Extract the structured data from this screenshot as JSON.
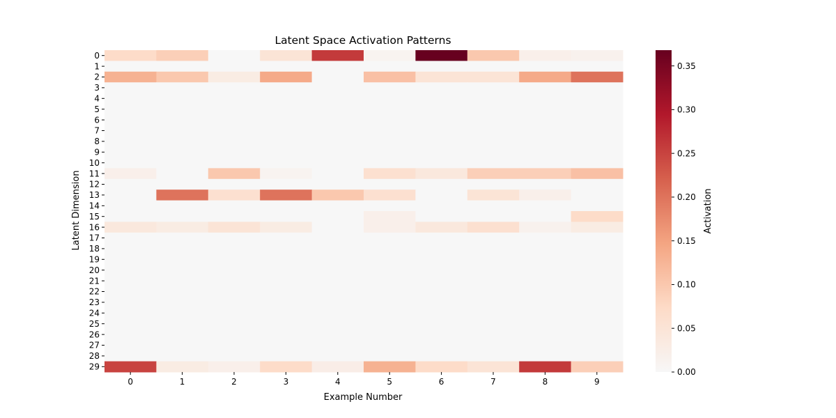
{
  "chart_data": {
    "type": "heatmap",
    "title": "Latent Space Activation Patterns",
    "xlabel": "Example Number",
    "ylabel": "Latent Dimension",
    "colorbar_label": "Activation",
    "colormap": "RdBu_r (white to dark red)",
    "x_categories": [
      "0",
      "1",
      "2",
      "3",
      "4",
      "5",
      "6",
      "7",
      "8",
      "9"
    ],
    "y_categories": [
      "0",
      "1",
      "2",
      "3",
      "4",
      "5",
      "6",
      "7",
      "8",
      "9",
      "10",
      "11",
      "12",
      "13",
      "14",
      "15",
      "16",
      "17",
      "18",
      "19",
      "20",
      "21",
      "22",
      "23",
      "24",
      "25",
      "26",
      "27",
      "28",
      "29"
    ],
    "vmin": 0.0,
    "vmax": 0.368,
    "colorbar_ticks": [
      "0.00",
      "0.05",
      "0.10",
      "0.15",
      "0.20",
      "0.25",
      "0.30",
      "0.35"
    ],
    "values": [
      [
        0.07,
        0.09,
        0.0,
        0.05,
        0.26,
        0.01,
        0.368,
        0.1,
        0.02,
        0.015
      ],
      [
        0.0,
        0.0,
        0.0,
        0.0,
        0.0,
        0.0,
        0.0,
        0.0,
        0.0,
        0.0
      ],
      [
        0.13,
        0.1,
        0.03,
        0.14,
        0.0,
        0.11,
        0.05,
        0.05,
        0.14,
        0.2
      ],
      [
        0.0,
        0.0,
        0.0,
        0.0,
        0.0,
        0.0,
        0.0,
        0.0,
        0.0,
        0.0
      ],
      [
        0.0,
        0.0,
        0.0,
        0.0,
        0.0,
        0.0,
        0.0,
        0.0,
        0.0,
        0.0
      ],
      [
        0.0,
        0.0,
        0.0,
        0.0,
        0.0,
        0.0,
        0.0,
        0.0,
        0.0,
        0.0
      ],
      [
        0.0,
        0.0,
        0.0,
        0.0,
        0.0,
        0.0,
        0.0,
        0.0,
        0.0,
        0.0
      ],
      [
        0.0,
        0.0,
        0.0,
        0.0,
        0.0,
        0.0,
        0.0,
        0.0,
        0.0,
        0.0
      ],
      [
        0.0,
        0.0,
        0.0,
        0.0,
        0.0,
        0.0,
        0.0,
        0.0,
        0.0,
        0.0
      ],
      [
        0.0,
        0.0,
        0.0,
        0.0,
        0.0,
        0.0,
        0.0,
        0.0,
        0.0,
        0.0
      ],
      [
        0.0,
        0.0,
        0.0,
        0.0,
        0.0,
        0.0,
        0.0,
        0.0,
        0.0,
        0.0
      ],
      [
        0.02,
        0.0,
        0.1,
        0.01,
        0.0,
        0.06,
        0.04,
        0.09,
        0.09,
        0.11
      ],
      [
        0.0,
        0.0,
        0.0,
        0.0,
        0.0,
        0.0,
        0.0,
        0.0,
        0.0,
        0.0
      ],
      [
        0.0,
        0.2,
        0.06,
        0.2,
        0.1,
        0.06,
        0.0,
        0.05,
        0.02,
        0.0
      ],
      [
        0.0,
        0.0,
        0.0,
        0.0,
        0.0,
        0.0,
        0.0,
        0.0,
        0.0,
        0.0
      ],
      [
        0.0,
        0.0,
        0.0,
        0.0,
        0.0,
        0.02,
        0.0,
        0.0,
        0.0,
        0.07
      ],
      [
        0.04,
        0.03,
        0.05,
        0.03,
        0.0,
        0.02,
        0.04,
        0.06,
        0.015,
        0.03
      ],
      [
        0.0,
        0.0,
        0.0,
        0.0,
        0.0,
        0.0,
        0.0,
        0.0,
        0.0,
        0.0
      ],
      [
        0.0,
        0.0,
        0.0,
        0.0,
        0.0,
        0.0,
        0.0,
        0.0,
        0.0,
        0.0
      ],
      [
        0.0,
        0.0,
        0.0,
        0.0,
        0.0,
        0.0,
        0.0,
        0.0,
        0.0,
        0.0
      ],
      [
        0.0,
        0.0,
        0.0,
        0.0,
        0.0,
        0.0,
        0.0,
        0.0,
        0.0,
        0.0
      ],
      [
        0.0,
        0.0,
        0.0,
        0.0,
        0.0,
        0.0,
        0.0,
        0.0,
        0.0,
        0.0
      ],
      [
        0.0,
        0.0,
        0.0,
        0.0,
        0.0,
        0.0,
        0.0,
        0.0,
        0.0,
        0.0
      ],
      [
        0.0,
        0.0,
        0.0,
        0.0,
        0.0,
        0.0,
        0.0,
        0.0,
        0.0,
        0.0
      ],
      [
        0.0,
        0.0,
        0.0,
        0.0,
        0.0,
        0.0,
        0.0,
        0.0,
        0.0,
        0.0
      ],
      [
        0.0,
        0.0,
        0.0,
        0.0,
        0.0,
        0.0,
        0.0,
        0.0,
        0.0,
        0.0
      ],
      [
        0.0,
        0.0,
        0.0,
        0.0,
        0.0,
        0.0,
        0.0,
        0.0,
        0.0,
        0.0
      ],
      [
        0.0,
        0.0,
        0.0,
        0.0,
        0.0,
        0.0,
        0.0,
        0.0,
        0.0,
        0.0
      ],
      [
        0.0,
        0.0,
        0.0,
        0.0,
        0.0,
        0.0,
        0.0,
        0.0,
        0.0,
        0.0
      ],
      [
        0.25,
        0.03,
        0.02,
        0.07,
        0.025,
        0.13,
        0.07,
        0.05,
        0.26,
        0.09
      ]
    ]
  }
}
